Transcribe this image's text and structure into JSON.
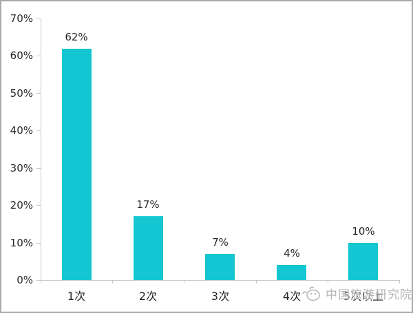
{
  "chart_data": {
    "type": "bar",
    "title": "",
    "xlabel": "",
    "ylabel": "",
    "categories": [
      "1次",
      "2次",
      "3次",
      "4次",
      "5次以上"
    ],
    "values": [
      62,
      17,
      7,
      4,
      10
    ],
    "value_labels": [
      "62%",
      "17%",
      "7%",
      "4%",
      "10%"
    ],
    "ylim": [
      0,
      70
    ],
    "ytick_step": 10,
    "ytick_labels": [
      "0%",
      "10%",
      "20%",
      "30%",
      "40%",
      "50%",
      "60%",
      "70%"
    ],
    "grid": false,
    "legend": null,
    "bar_color": "#13c6d1",
    "axis_color": "#c9c9c9",
    "text_color": "#262626"
  },
  "watermark": {
    "text": "中国旅游研究院",
    "logo": "bird-sketch-logo-icon",
    "color": "#b5b5b5"
  }
}
